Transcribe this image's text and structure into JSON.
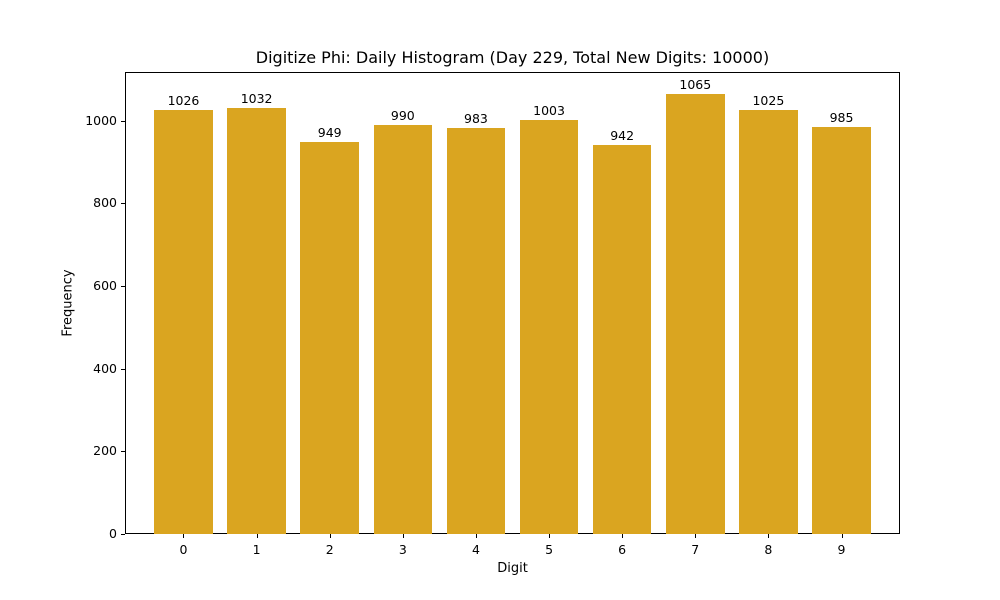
{
  "chart_data": {
    "type": "bar",
    "title": "Digitize Phi: Daily Histogram (Day 229, Total New Digits: 10000)",
    "xlabel": "Digit",
    "ylabel": "Frequency",
    "categories": [
      "0",
      "1",
      "2",
      "3",
      "4",
      "5",
      "6",
      "7",
      "8",
      "9"
    ],
    "values": [
      1026,
      1032,
      949,
      990,
      983,
      1003,
      942,
      1065,
      1025,
      985
    ],
    "bar_labels": [
      "1026",
      "1032",
      "949",
      "990",
      "983",
      "1003",
      "942",
      "1065",
      "1025",
      "985"
    ],
    "yticks": [
      0,
      200,
      400,
      600,
      800,
      1000
    ],
    "ylim": [
      0,
      1118
    ],
    "grid": false,
    "legend": null,
    "bar_color": "#DAA520"
  }
}
